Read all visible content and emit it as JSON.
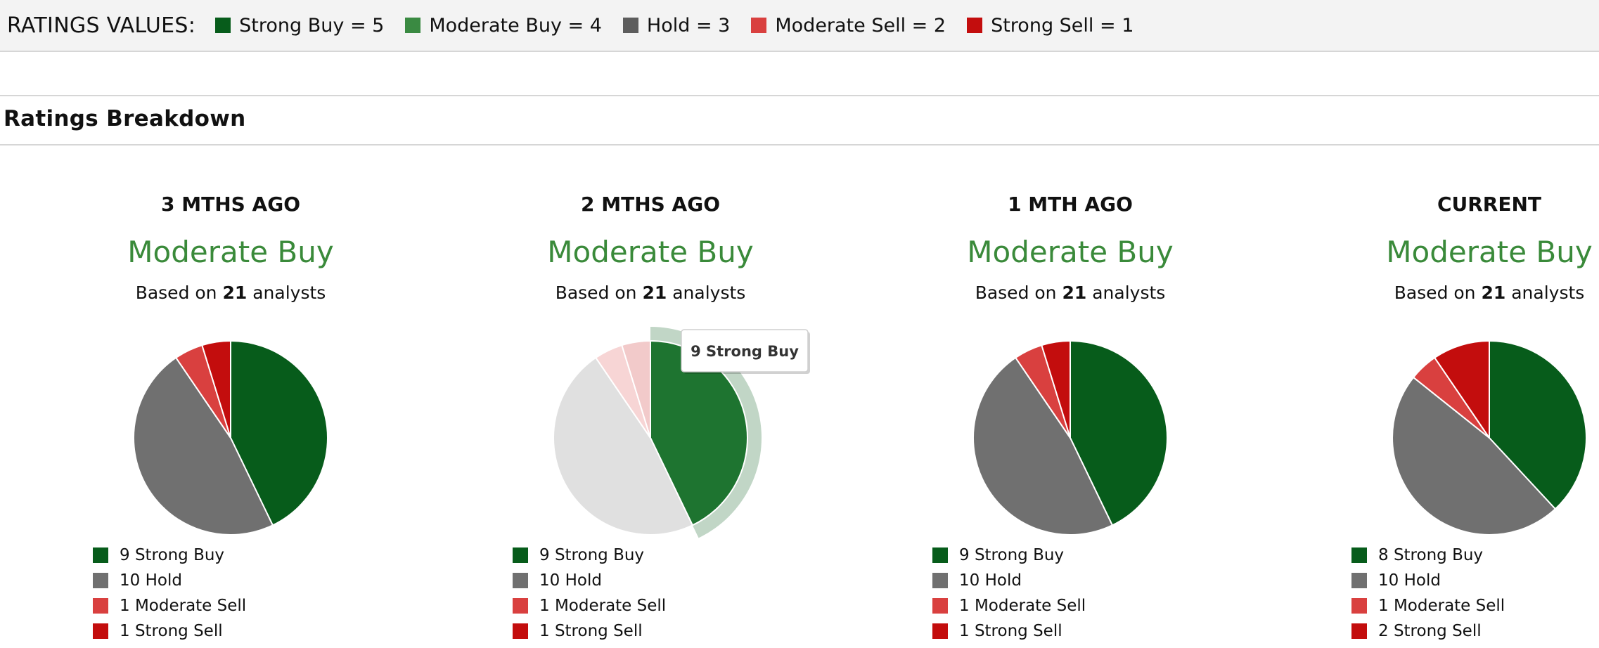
{
  "ratings_values": {
    "title": "RATINGS VALUES:",
    "items": [
      {
        "label": "Strong Buy = 5",
        "color": "#075c1b"
      },
      {
        "label": "Moderate Buy = 4",
        "color": "#3a8a42"
      },
      {
        "label": "Hold = 3",
        "color": "#5d5d5d"
      },
      {
        "label": "Moderate Sell = 2",
        "color": "#d9403f"
      },
      {
        "label": "Strong Sell = 1",
        "color": "#c30d0d"
      }
    ]
  },
  "section": {
    "heading": "Ratings Breakdown"
  },
  "chart_data": [
    {
      "type": "pie",
      "title": "3 MTHS AGO",
      "consensus": "Moderate Buy",
      "based_prefix": "Based on",
      "analyst_count": "21",
      "based_suffix": "analysts",
      "slices": [
        {
          "label": "9 Strong Buy",
          "value": 9,
          "color": "#075c1b"
        },
        {
          "label": "10 Hold",
          "value": 10,
          "color": "#707070"
        },
        {
          "label": "1 Moderate Sell",
          "value": 1,
          "color": "#d9403f"
        },
        {
          "label": "1 Strong Sell",
          "value": 1,
          "color": "#c30d0d"
        }
      ]
    },
    {
      "type": "pie",
      "title": "2 MTHS AGO",
      "consensus": "Moderate Buy",
      "based_prefix": "Based on",
      "analyst_count": "21",
      "based_suffix": "analysts",
      "highlighted": 0,
      "tooltip": "9 Strong Buy",
      "slices": [
        {
          "label": "9 Strong Buy",
          "value": 9,
          "color": "#075c1b"
        },
        {
          "label": "10 Hold",
          "value": 10,
          "color": "#707070"
        },
        {
          "label": "1 Moderate Sell",
          "value": 1,
          "color": "#d9403f"
        },
        {
          "label": "1 Strong Sell",
          "value": 1,
          "color": "#c30d0d"
        }
      ]
    },
    {
      "type": "pie",
      "title": "1 MTH AGO",
      "consensus": "Moderate Buy",
      "based_prefix": "Based on",
      "analyst_count": "21",
      "based_suffix": "analysts",
      "slices": [
        {
          "label": "9 Strong Buy",
          "value": 9,
          "color": "#075c1b"
        },
        {
          "label": "10 Hold",
          "value": 10,
          "color": "#707070"
        },
        {
          "label": "1 Moderate Sell",
          "value": 1,
          "color": "#d9403f"
        },
        {
          "label": "1 Strong Sell",
          "value": 1,
          "color": "#c30d0d"
        }
      ]
    },
    {
      "type": "pie",
      "title": "CURRENT",
      "consensus": "Moderate Buy",
      "based_prefix": "Based on",
      "analyst_count": "21",
      "based_suffix": "analysts",
      "slices": [
        {
          "label": "8 Strong Buy",
          "value": 8,
          "color": "#075c1b"
        },
        {
          "label": "10 Hold",
          "value": 10,
          "color": "#707070"
        },
        {
          "label": "1 Moderate Sell",
          "value": 1,
          "color": "#d9403f"
        },
        {
          "label": "2 Strong Sell",
          "value": 2,
          "color": "#c30d0d"
        }
      ]
    }
  ]
}
